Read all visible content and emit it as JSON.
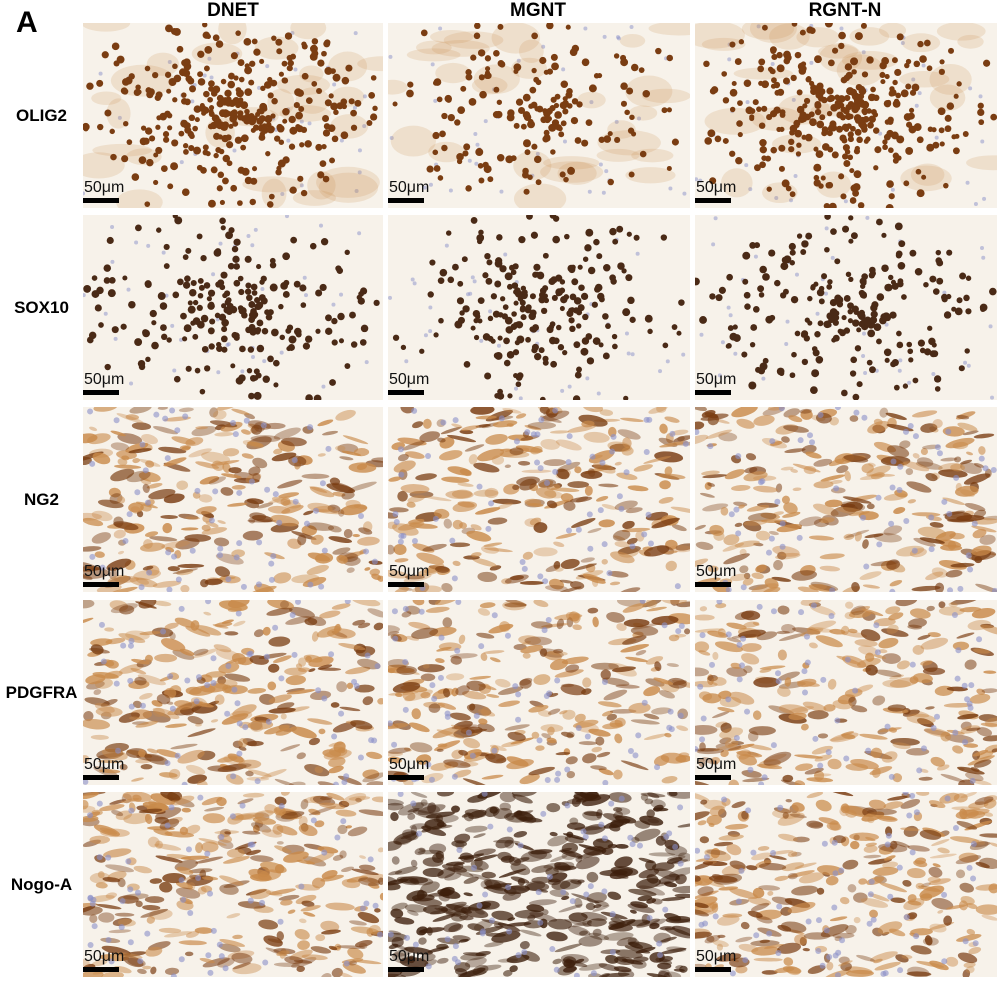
{
  "panel_letter": "A",
  "columns": [
    "DNET",
    "MGNT",
    "RGNT-N"
  ],
  "rows": [
    {
      "label": "OLIG2",
      "style": "nuclei-dense"
    },
    {
      "label": "SOX10",
      "style": "nuclei"
    },
    {
      "label": "NG2",
      "style": "fibrous"
    },
    {
      "label": "PDGFRA",
      "style": "fibrous"
    },
    {
      "label": "Nogo-A",
      "style": "cytoplasmic"
    }
  ],
  "scale_bar_label": "50μm",
  "colors": {
    "dab_brown": "#7a3d12",
    "dab_light": "#c98a4a",
    "hematoxylin": "#8a8fc8",
    "background": "#f7f2ea"
  }
}
